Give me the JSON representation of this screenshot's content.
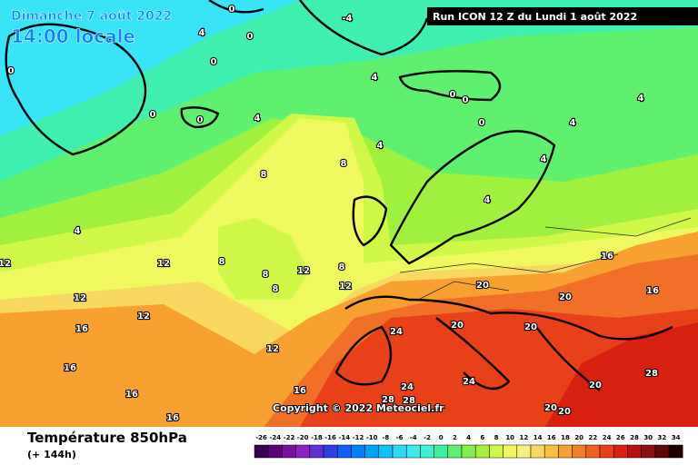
{
  "header": {
    "date": "Dimanche 7 août 2022",
    "time": "14:00 locale",
    "run": "Run ICON 12 Z du Lundi 1 août 2022"
  },
  "copyright": "Copyright © 2022 Meteociel.fr",
  "footer": {
    "title": "Température 850hPa",
    "lead": "(+ 144h)"
  },
  "legend": {
    "ticks": [
      -26,
      -24,
      -22,
      -20,
      -18,
      -16,
      -14,
      -12,
      -10,
      -8,
      -6,
      -4,
      -2,
      0,
      2,
      4,
      6,
      8,
      10,
      12,
      14,
      16,
      18,
      20,
      22,
      24,
      26,
      28,
      30,
      32,
      34
    ],
    "colors": [
      "#3a0050",
      "#5a0078",
      "#7a10a0",
      "#9020c0",
      "#6030d0",
      "#3040e0",
      "#1060f0",
      "#0080f8",
      "#00a0f8",
      "#10c0f8",
      "#30d8f8",
      "#40e8f0",
      "#40f0d0",
      "#40f0a0",
      "#60f070",
      "#80f050",
      "#a8f040",
      "#d0f848",
      "#f0f860",
      "#f8f080",
      "#f8d860",
      "#f8c040",
      "#f8a030",
      "#f08028",
      "#f06020",
      "#e84018",
      "#d82010",
      "#b81010",
      "#901010",
      "#600808",
      "#200000"
    ]
  },
  "contour_labels": [
    0,
    -4,
    0,
    4,
    0,
    0,
    0,
    0,
    4,
    0,
    0,
    0,
    4,
    4,
    4,
    4,
    4,
    4,
    8,
    8,
    8,
    8,
    8,
    8,
    12,
    12,
    12,
    12,
    12,
    12,
    16,
    16,
    16,
    16,
    16,
    16,
    20,
    20,
    20,
    20,
    20,
    24,
    24,
    24,
    28,
    28,
    28,
    20,
    20,
    16,
    4,
    12
  ]
}
